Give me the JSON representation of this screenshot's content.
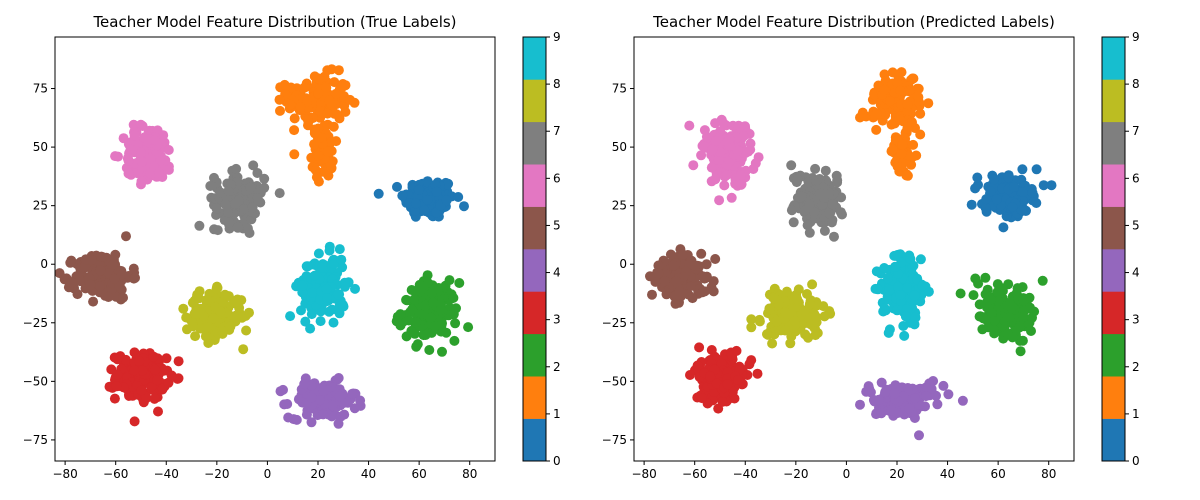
{
  "chart_data": [
    {
      "type": "scatter",
      "title": "Teacher Model Feature Distribution (True Labels)",
      "xlabel": "",
      "ylabel": "",
      "xlim": [
        -84,
        90
      ],
      "ylim": [
        -84,
        97
      ],
      "xticks": [
        -80,
        -60,
        -40,
        -20,
        0,
        20,
        40,
        60,
        80
      ],
      "yticks": [
        -75,
        -50,
        -25,
        0,
        25,
        50,
        75
      ],
      "grid": false,
      "colorbar": {
        "min": 0,
        "max": 9,
        "ticks": [
          0,
          1,
          2,
          3,
          4,
          5,
          6,
          7,
          8,
          9
        ]
      },
      "clusters": [
        {
          "label": 0,
          "center": [
            64,
            28
          ],
          "spread": [
            9,
            8
          ],
          "count": 160
        },
        {
          "label": 1,
          "center": [
            20,
            70
          ],
          "spread": [
            11,
            10
          ],
          "count": 140
        },
        {
          "label": 1,
          "center": [
            22,
            48
          ],
          "spread": [
            4,
            10
          ],
          "count": 60
        },
        {
          "label": 2,
          "center": [
            64,
            -20
          ],
          "spread": [
            10,
            11
          ],
          "count": 160
        },
        {
          "label": 3,
          "center": [
            -50,
            -48
          ],
          "spread": [
            9,
            9
          ],
          "count": 170
        },
        {
          "label": 4,
          "center": [
            22,
            -58
          ],
          "spread": [
            12,
            7
          ],
          "count": 160
        },
        {
          "label": 5,
          "center": [
            -65,
            -5
          ],
          "spread": [
            10,
            9
          ],
          "count": 160
        },
        {
          "label": 6,
          "center": [
            -47,
            47
          ],
          "spread": [
            9,
            11
          ],
          "count": 150
        },
        {
          "label": 7,
          "center": [
            -11,
            28
          ],
          "spread": [
            9,
            10
          ],
          "count": 150
        },
        {
          "label": 8,
          "center": [
            -21,
            -22
          ],
          "spread": [
            10,
            9
          ],
          "count": 160
        },
        {
          "label": 9,
          "center": [
            22,
            -10
          ],
          "spread": [
            8,
            12
          ],
          "count": 170
        }
      ]
    },
    {
      "type": "scatter",
      "title": "Teacher Model Feature Distribution (Predicted Labels)",
      "xlabel": "",
      "ylabel": "",
      "xlim": [
        -84,
        90
      ],
      "ylim": [
        -84,
        97
      ],
      "xticks": [
        -80,
        -60,
        -40,
        -20,
        0,
        20,
        40,
        60,
        80
      ],
      "yticks": [
        -75,
        -50,
        -25,
        0,
        25,
        50,
        75
      ],
      "grid": false,
      "colorbar": {
        "min": 0,
        "max": 9,
        "ticks": [
          0,
          1,
          2,
          3,
          4,
          5,
          6,
          7,
          8,
          9
        ]
      },
      "clusters": [
        {
          "label": 0,
          "center": [
            64,
            28
          ],
          "spread": [
            9,
            8
          ],
          "count": 160
        },
        {
          "label": 1,
          "center": [
            20,
            70
          ],
          "spread": [
            11,
            10
          ],
          "count": 140
        },
        {
          "label": 1,
          "center": [
            22,
            48
          ],
          "spread": [
            4,
            10
          ],
          "count": 60
        },
        {
          "label": 2,
          "center": [
            64,
            -20
          ],
          "spread": [
            10,
            11
          ],
          "count": 160
        },
        {
          "label": 3,
          "center": [
            -50,
            -48
          ],
          "spread": [
            9,
            9
          ],
          "count": 170
        },
        {
          "label": 4,
          "center": [
            22,
            -58
          ],
          "spread": [
            12,
            7
          ],
          "count": 160
        },
        {
          "label": 5,
          "center": [
            -65,
            -5
          ],
          "spread": [
            10,
            9
          ],
          "count": 160
        },
        {
          "label": 6,
          "center": [
            -47,
            47
          ],
          "spread": [
            9,
            11
          ],
          "count": 150
        },
        {
          "label": 7,
          "center": [
            -11,
            28
          ],
          "spread": [
            9,
            10
          ],
          "count": 150
        },
        {
          "label": 8,
          "center": [
            -21,
            -22
          ],
          "spread": [
            10,
            9
          ],
          "count": 160
        },
        {
          "label": 9,
          "center": [
            22,
            -10
          ],
          "spread": [
            8,
            12
          ],
          "count": 170
        }
      ]
    }
  ],
  "colors": [
    "#1f77b4",
    "#ff7f0e",
    "#2ca02c",
    "#d62728",
    "#9467bd",
    "#8c564b",
    "#e377c2",
    "#7f7f7f",
    "#bcbd22",
    "#17becf"
  ]
}
